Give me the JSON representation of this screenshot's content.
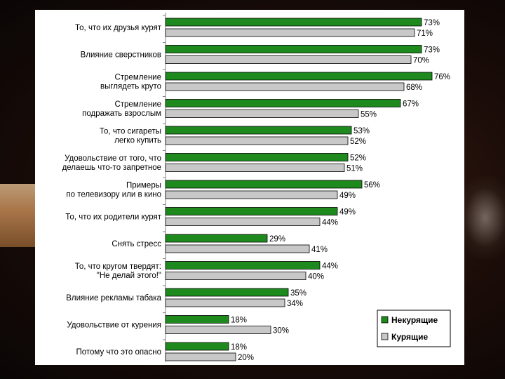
{
  "chart_data": {
    "type": "bar",
    "orientation": "horizontal",
    "categories": [
      [
        "То, что их друзья курят"
      ],
      [
        "Влияние сверстников"
      ],
      [
        "Стремление",
        "выглядеть круто"
      ],
      [
        "Стремление",
        "подражать взрослым"
      ],
      [
        "То, что сигареты",
        "легко купить"
      ],
      [
        "Удовольствие от того, что",
        "делаешь что-то запретное"
      ],
      [
        "Примеры",
        "по телевизору или в кино"
      ],
      [
        "То, что их родители курят"
      ],
      [
        "Снять стресс"
      ],
      [
        "То, что кругом твердят:",
        "\"Не делай этого!\""
      ],
      [
        "Влияние рекламы табака"
      ],
      [
        "Удовольствие от курения"
      ],
      [
        "Потому что это опасно"
      ]
    ],
    "series": [
      {
        "name": "Некурящие",
        "color": "#1e8a1e",
        "values": [
          73,
          73,
          76,
          67,
          53,
          52,
          56,
          49,
          29,
          44,
          35,
          18,
          18
        ]
      },
      {
        "name": "Курящие",
        "color": "#c8c8c8",
        "values": [
          71,
          70,
          68,
          55,
          52,
          51,
          49,
          44,
          41,
          40,
          34,
          30,
          20
        ]
      }
    ],
    "value_suffix": "%",
    "xlim": [
      0,
      100
    ],
    "legend_position": "bottom-right"
  }
}
